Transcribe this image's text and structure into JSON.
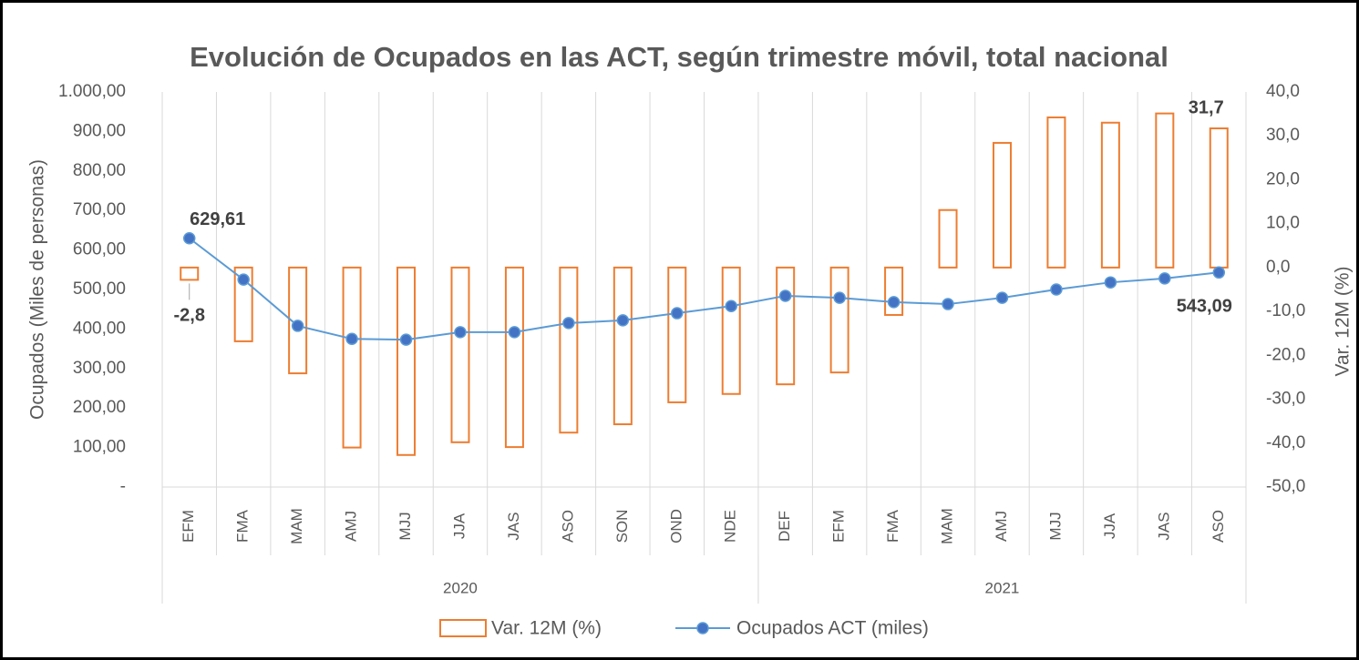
{
  "chart_data": {
    "type": "bar_line",
    "title": "Evolución de Ocupados en las ACT, según trimestre móvil, total nacional",
    "ylabel": "Ocupados (Miles de personas)",
    "y2label": "Var. 12M (%)",
    "categories": [
      "EFM",
      "FMA",
      "MAM",
      "AMJ",
      "MJJ",
      "JJA",
      "JAS",
      "ASO",
      "SON",
      "OND",
      "NDE",
      "DEF",
      "EFM",
      "FMA",
      "MAM",
      "AMJ",
      "MJJ",
      "JJA",
      "JAS",
      "ASO"
    ],
    "x_groups": [
      {
        "label": "2020",
        "span": 11
      },
      {
        "label": "2021",
        "span": 9
      }
    ],
    "series": [
      {
        "name": "Var. 12M (%)",
        "type": "bar",
        "axis": "y2",
        "color": "#ed7d31",
        "values": [
          -2.8,
          -16.8,
          -24.1,
          -41.0,
          -42.7,
          -39.8,
          -40.9,
          -37.6,
          -35.7,
          -30.7,
          -28.8,
          -26.6,
          -23.9,
          -10.8,
          13.1,
          28.4,
          34.2,
          33.0,
          35.1,
          31.7
        ],
        "value_labels": [
          "-2,8",
          null,
          null,
          null,
          null,
          null,
          null,
          null,
          null,
          null,
          null,
          null,
          null,
          null,
          null,
          null,
          null,
          null,
          null,
          "31,7"
        ]
      },
      {
        "name": "Ocupados ACT (miles)",
        "type": "line",
        "axis": "y",
        "color": "#5b9bd5",
        "marker_color": "#4472c4",
        "values": [
          629.61,
          525,
          408,
          375,
          373,
          392,
          392,
          415,
          422,
          440,
          458,
          484,
          479,
          468,
          463,
          479,
          500,
          518,
          528,
          543.09
        ],
        "value_labels": [
          "629,61",
          null,
          null,
          null,
          null,
          null,
          null,
          null,
          null,
          null,
          null,
          null,
          null,
          null,
          null,
          null,
          null,
          null,
          null,
          "543,09"
        ]
      }
    ],
    "ylim": [
      0,
      1000
    ],
    "yticks": [
      {
        "value": 0,
        "label": "-"
      },
      {
        "value": 100,
        "label": "100,00"
      },
      {
        "value": 200,
        "label": "200,00"
      },
      {
        "value": 300,
        "label": "300,00"
      },
      {
        "value": 400,
        "label": "400,00"
      },
      {
        "value": 500,
        "label": "500,00"
      },
      {
        "value": 600,
        "label": "600,00"
      },
      {
        "value": 700,
        "label": "700,00"
      },
      {
        "value": 800,
        "label": "800,00"
      },
      {
        "value": 900,
        "label": "900,00"
      },
      {
        "value": 1000,
        "label": "1.000,00"
      }
    ],
    "y2lim": [
      -50,
      40
    ],
    "y2ticks": [
      {
        "value": -50,
        "label": "-50,0"
      },
      {
        "value": -40,
        "label": "-40,0"
      },
      {
        "value": -30,
        "label": "-30,0"
      },
      {
        "value": -20,
        "label": "-20,0"
      },
      {
        "value": -10,
        "label": "-10,0"
      },
      {
        "value": 0,
        "label": "0,0"
      },
      {
        "value": 10,
        "label": "10,0"
      },
      {
        "value": 20,
        "label": "20,0"
      },
      {
        "value": 30,
        "label": "30,0"
      },
      {
        "value": 40,
        "label": "40,0"
      }
    ],
    "legend": "bottom"
  }
}
